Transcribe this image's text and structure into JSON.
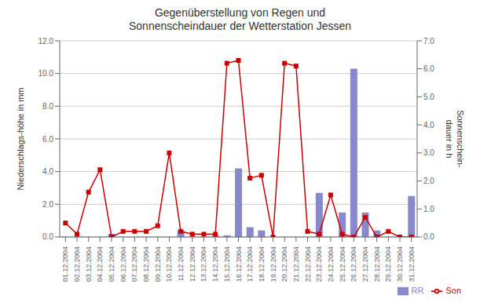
{
  "chart_data": {
    "type": "bar",
    "title": "Gegenüberstellung von Regen und\nSonnenscheindauer der Wetterstation Jessen",
    "categories": [
      "01.12.2004",
      "02.12.2004",
      "03.12.2004",
      "04.12.2004",
      "05.12.2004",
      "06.12.2004",
      "07.12.2004",
      "08.12.2004",
      "09.12.2004",
      "10.12.2004",
      "11.12.2004",
      "12.12.2004",
      "13.12.2004",
      "14.12.2004",
      "15.12.2004",
      "16.12.2004",
      "17.12.2004",
      "18.12.2004",
      "19.12.2004",
      "20.12.2004",
      "21.12.2004",
      "22.12.2004",
      "23.12.2004",
      "24.12.2004",
      "25.12.2004",
      "26.12.2004",
      "27.12.2004",
      "28.12.2004",
      "29.12.2004",
      "30.12.2004",
      "31.12.2004"
    ],
    "series": [
      {
        "name": "RR",
        "type": "bar",
        "color": "#8888cc",
        "values": [
          0.0,
          0.0,
          0.0,
          0.0,
          0.2,
          0.0,
          0.0,
          0.0,
          0.0,
          0.0,
          0.4,
          0.0,
          0.0,
          0.1,
          0.1,
          4.2,
          0.6,
          0.4,
          0.0,
          0.0,
          0.0,
          0.0,
          2.7,
          0.0,
          1.5,
          10.3,
          1.5,
          0.4,
          0.0,
          0.0,
          2.5
        ]
      },
      {
        "name": "Son",
        "type": "line",
        "axis": "y2",
        "color": "#cc0000",
        "marker": "square",
        "values": [
          0.5,
          0.1,
          1.6,
          2.4,
          0.0,
          0.2,
          0.2,
          0.2,
          0.4,
          3.0,
          0.2,
          0.1,
          0.1,
          0.1,
          6.2,
          6.3,
          2.1,
          2.2,
          0.0,
          6.2,
          6.1,
          0.2,
          0.1,
          1.5,
          0.1,
          0.0,
          0.7,
          0.0,
          0.2,
          0.0,
          0.0
        ]
      }
    ],
    "ylabel": "Niederschlags-höhe in mm",
    "y2label": "Sonnenschein-\ndauer in h",
    "ylim": [
      0,
      12.0
    ],
    "yticks": [
      {
        "value": 0,
        "label": "0.0"
      },
      {
        "value": 2,
        "label": "2.0"
      },
      {
        "value": 4,
        "label": "4.0"
      },
      {
        "value": 6,
        "label": "6.0"
      },
      {
        "value": 8,
        "label": "8.0"
      },
      {
        "value": 10,
        "label": "10.0"
      },
      {
        "value": 12,
        "label": "12.0"
      }
    ],
    "y2lim": [
      0,
      7.0
    ],
    "y2ticks": [
      {
        "value": 0,
        "label": "0.0"
      },
      {
        "value": 1,
        "label": "1.0"
      },
      {
        "value": 2,
        "label": "2.0"
      },
      {
        "value": 3,
        "label": "3.0"
      },
      {
        "value": 4,
        "label": "4.0"
      },
      {
        "value": 5,
        "label": "5.0"
      },
      {
        "value": 6,
        "label": "6.0"
      },
      {
        "value": 7,
        "label": "7.0"
      }
    ],
    "grid": true,
    "legend": "lower right"
  }
}
